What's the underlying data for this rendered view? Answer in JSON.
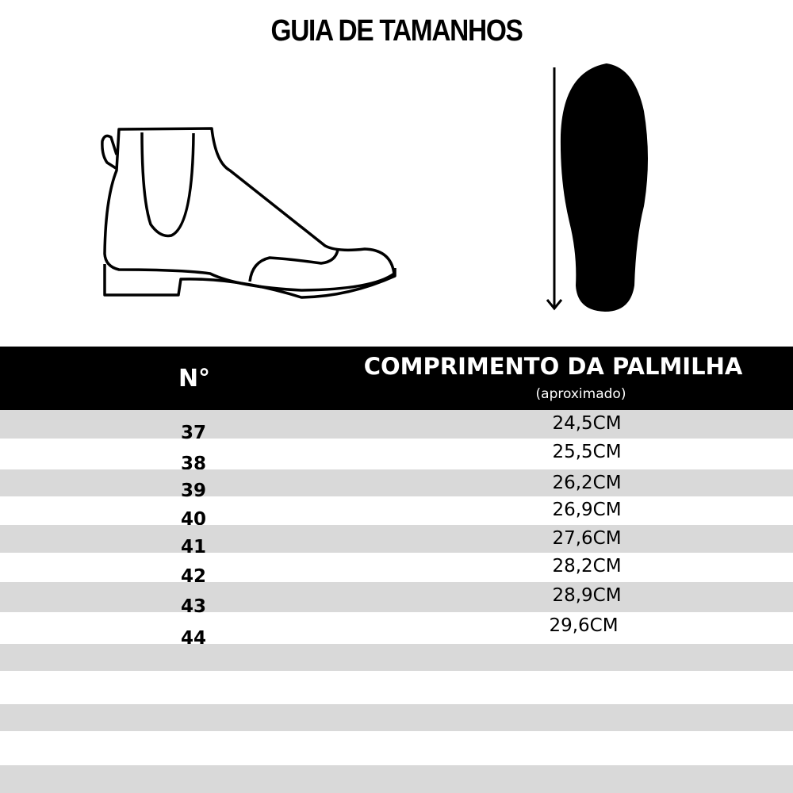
{
  "title": "GUIA DE TAMANHOS",
  "table": {
    "col_size": "N°",
    "col_length": "COMPRIMENTO DA PALMILHA",
    "col_length_note": "(aproximado)",
    "rows": [
      {
        "size": "37",
        "length": "24,5CM"
      },
      {
        "size": "38",
        "length": "25,5CM"
      },
      {
        "size": "39",
        "length": "26,2CM"
      },
      {
        "size": "40",
        "length": "26,9CM"
      },
      {
        "size": "41",
        "length": "27,6CM"
      },
      {
        "size": "42",
        "length": "28,2CM"
      },
      {
        "size": "43",
        "length": "28,9CM"
      },
      {
        "size": "44",
        "length": "29,6CM"
      }
    ]
  },
  "colors": {
    "header_bg": "#000000",
    "stripe": "#d9d9d9"
  }
}
